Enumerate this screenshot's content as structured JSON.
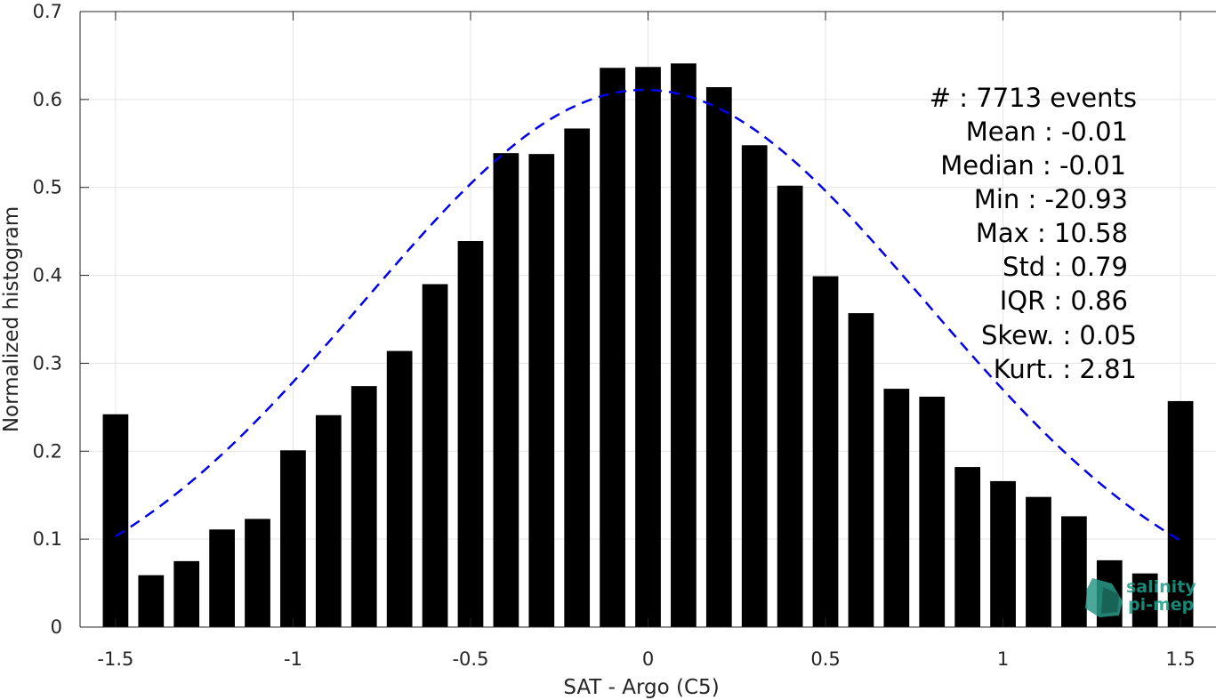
{
  "chart_data": {
    "type": "bar",
    "title": "",
    "xlabel": "SAT - Argo (C5)",
    "ylabel": "Normalized histogram",
    "xlim": [
      -1.6,
      1.6
    ],
    "ylim": [
      0,
      0.7
    ],
    "grid": true,
    "xticks": [
      -1.5,
      -1,
      -0.5,
      0,
      0.5,
      1,
      1.5
    ],
    "xtick_labels": [
      "-1.5",
      "-1",
      "-0.5",
      "0",
      "0.5",
      "1",
      "1.5"
    ],
    "yticks": [
      0,
      0.1,
      0.2,
      0.3,
      0.4,
      0.5,
      0.6,
      0.7
    ],
    "ytick_labels": [
      "0",
      "0.1",
      "0.2",
      "0.3",
      "0.4",
      "0.5",
      "0.6",
      "0.7"
    ],
    "bar_color": "#000000",
    "x": [
      -1.5,
      -1.4,
      -1.3,
      -1.2,
      -1.1,
      -1.0,
      -0.9,
      -0.8,
      -0.7,
      -0.6,
      -0.5,
      -0.4,
      -0.3,
      -0.2,
      -0.1,
      0.0,
      0.1,
      0.2,
      0.3,
      0.4,
      0.5,
      0.6,
      0.7,
      0.8,
      0.9,
      1.0,
      1.1,
      1.2,
      1.3,
      1.4,
      1.5
    ],
    "values": [
      0.242,
      0.059,
      0.075,
      0.111,
      0.123,
      0.201,
      0.241,
      0.274,
      0.314,
      0.39,
      0.439,
      0.539,
      0.538,
      0.567,
      0.636,
      0.637,
      0.641,
      0.614,
      0.548,
      0.502,
      0.399,
      0.357,
      0.271,
      0.262,
      0.182,
      0.166,
      0.148,
      0.126,
      0.076,
      0.061,
      0.257
    ],
    "fit": {
      "type": "gaussian",
      "mean": -0.01,
      "std": 0.79,
      "peak": 0.611,
      "color": "#0000ee",
      "style": "dashed",
      "x_range": [
        -1.5,
        1.5
      ]
    },
    "annotations": [
      "#  : 7713 events",
      "Mean : -0.01",
      "Median : -0.01",
      "Min : -20.93",
      "Max : 10.58",
      "Std : 0.79",
      "IQR : 0.86",
      "Skew. : 0.05",
      "Kurt. : 2.81"
    ]
  },
  "logo": {
    "line1": "salinity",
    "line2": "pi-mep",
    "color": "#1aa08a"
  }
}
